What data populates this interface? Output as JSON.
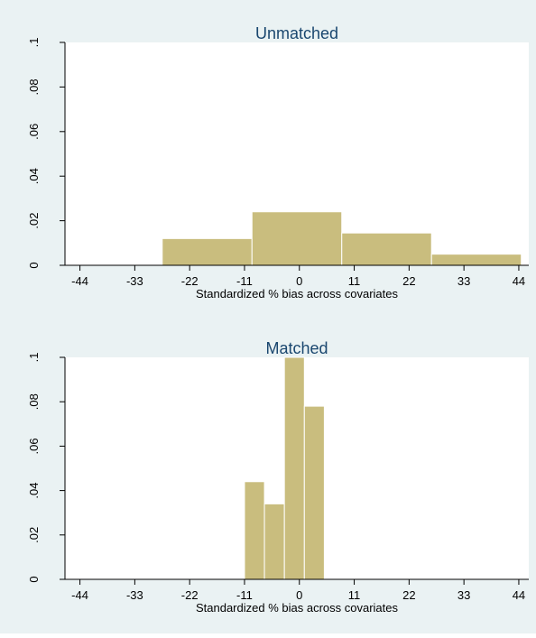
{
  "colors": {
    "background": "#eaf2f3",
    "plot_background": "#ffffff",
    "bar_fill": "#c9bd7e",
    "bar_stroke": "#ffffff",
    "title": "#1a476f",
    "axis": "#000000"
  },
  "chart_data": [
    {
      "type": "bar",
      "subtype": "histogram",
      "title": "Unmatched",
      "xlabel": "Standardized % bias across covariates",
      "ylabel": "",
      "xlim": [
        -47,
        46
      ],
      "ylim": [
        0,
        0.1
      ],
      "xticks": [
        -44,
        -33,
        -22,
        -11,
        0,
        11,
        22,
        33,
        44
      ],
      "yticks": [
        0,
        0.02,
        0.04,
        0.06,
        0.08,
        0.1
      ],
      "ytick_labels": [
        "0",
        ".02",
        ".04",
        ".06",
        ".08",
        ".1"
      ],
      "bins": [
        {
          "x0": -27.5,
          "x1": -9.5,
          "value": 0.012
        },
        {
          "x0": -9.5,
          "x1": 8.5,
          "value": 0.024
        },
        {
          "x0": 8.5,
          "x1": 26.5,
          "value": 0.0145
        },
        {
          "x0": 26.5,
          "x1": 44.5,
          "value": 0.005
        }
      ],
      "grid": false,
      "legend": "none"
    },
    {
      "type": "bar",
      "subtype": "histogram",
      "title": "Matched",
      "xlabel": "Standardized % bias across covariates",
      "ylabel": "",
      "xlim": [
        -47,
        46
      ],
      "ylim": [
        0,
        0.1
      ],
      "xticks": [
        -44,
        -33,
        -22,
        -11,
        0,
        11,
        22,
        33,
        44
      ],
      "yticks": [
        0,
        0.02,
        0.04,
        0.06,
        0.08,
        0.1
      ],
      "ytick_labels": [
        "0",
        ".02",
        ".04",
        ".06",
        ".08",
        ".1"
      ],
      "bins": [
        {
          "x0": -11,
          "x1": -7,
          "value": 0.044
        },
        {
          "x0": -7,
          "x1": -3,
          "value": 0.034
        },
        {
          "x0": -3,
          "x1": 1,
          "value": 0.1
        },
        {
          "x0": 1,
          "x1": 5,
          "value": 0.078
        }
      ],
      "grid": false,
      "legend": "none"
    }
  ]
}
